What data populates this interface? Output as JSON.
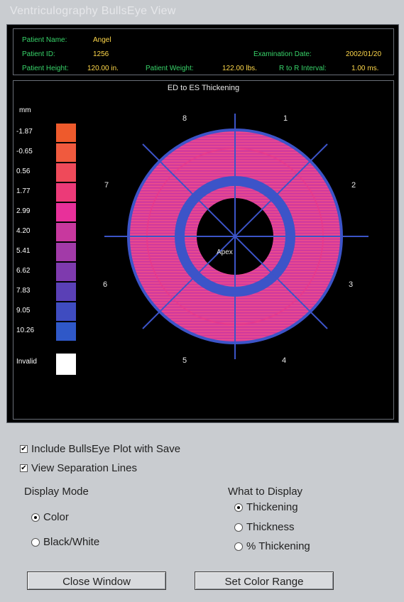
{
  "window": {
    "title": "Ventriculography BullsEye View"
  },
  "patient": {
    "name_label": "Patient Name:",
    "name_value": "Angel",
    "id_label": "Patient ID:",
    "id_value": "1256",
    "height_label": "Patient Height:",
    "height_value": "120.00 in.",
    "weight_label": "Patient Weight:",
    "weight_value": "122.00 lbs.",
    "exam_label": "Examination Date:",
    "exam_value": "2002/01/20",
    "rr_label": "R to R Interval:",
    "rr_value": "1.00 ms."
  },
  "plot": {
    "title": "ED to ES Thickening",
    "unit": "mm",
    "center_label": "Apex",
    "segments": [
      "1",
      "2",
      "3",
      "4",
      "5",
      "6",
      "7",
      "8"
    ],
    "legend": [
      {
        "label": "-1.87",
        "color": "#ee5a2c"
      },
      {
        "label": "-0.65",
        "color": "#f05a3e"
      },
      {
        "label": "0.56",
        "color": "#ef4a5a"
      },
      {
        "label": "1.77",
        "color": "#ec3a78"
      },
      {
        "label": "2.99",
        "color": "#e8309a"
      },
      {
        "label": "4.20",
        "color": "#c8389e"
      },
      {
        "label": "5.41",
        "color": "#a23aa8"
      },
      {
        "label": "6.62",
        "color": "#7e3aae"
      },
      {
        "label": "7.83",
        "color": "#5a40b6"
      },
      {
        "label": "9.05",
        "color": "#3f4cc0"
      },
      {
        "label": "10.26",
        "color": "#2f58c8"
      }
    ],
    "invalid_label": "Invalid"
  },
  "options": {
    "include_label": "Include BullsEye Plot with Save",
    "include_checked": true,
    "separation_label": "View Separation Lines",
    "separation_checked": true
  },
  "display_mode": {
    "title": "Display Mode",
    "options": [
      {
        "label": "Color",
        "selected": true
      },
      {
        "label": "Black/White",
        "selected": false
      }
    ]
  },
  "what_to_display": {
    "title": "What to Display",
    "options": [
      {
        "label": "Thickening",
        "selected": true
      },
      {
        "label": "Thickness",
        "selected": false
      },
      {
        "label": "% Thickening",
        "selected": false
      }
    ]
  },
  "buttons": {
    "close": "Close Window",
    "color_range": "Set Color Range"
  }
}
